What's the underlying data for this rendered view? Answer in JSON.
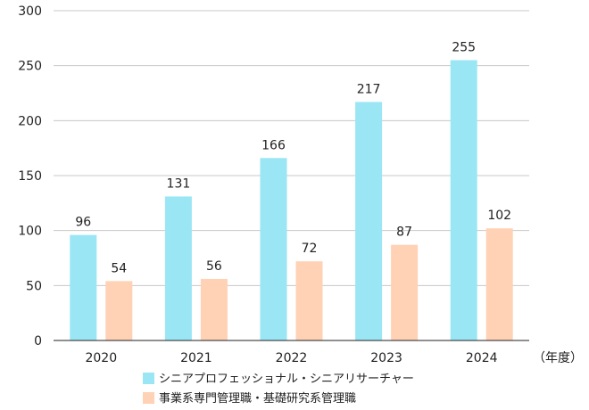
{
  "chart_data": {
    "type": "bar",
    "title": "",
    "xlabel": "",
    "ylabel": "",
    "x_unit_label": "（年度）",
    "categories": [
      "2020",
      "2021",
      "2022",
      "2023",
      "2024"
    ],
    "ylim": [
      0,
      300
    ],
    "yticks": [
      0,
      50,
      100,
      150,
      200,
      250,
      300
    ],
    "grid": true,
    "legend_position": "bottom-center",
    "series": [
      {
        "name": "シニアプロフェッショナル・シニアリサーチャー",
        "color": "#9ae6f4",
        "values": [
          96,
          131,
          166,
          217,
          255
        ]
      },
      {
        "name": "事業系専門管理職・基礎研究系管理職",
        "color": "#ffd1b5",
        "values": [
          54,
          56,
          72,
          87,
          102
        ]
      }
    ]
  }
}
